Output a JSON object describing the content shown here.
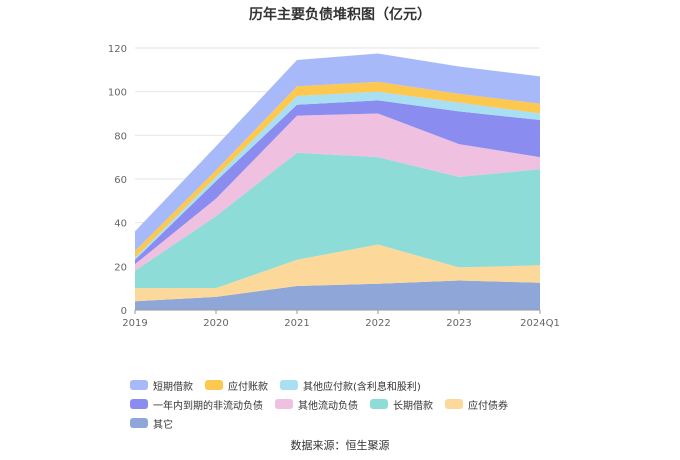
{
  "chart_data": {
    "type": "area",
    "stacked": true,
    "title": "历年主要负债堆积图（亿元）",
    "xlabel": "",
    "ylabel": "",
    "ylim": [
      0,
      120
    ],
    "yticks": [
      0,
      20,
      40,
      60,
      80,
      100,
      120
    ],
    "categories": [
      "2019",
      "2020",
      "2021",
      "2022",
      "2023",
      "2024Q1"
    ],
    "grid": true,
    "legend_position": "bottom",
    "series": [
      {
        "name": "其它",
        "color": "#8ea7d8",
        "values": [
          4,
          6,
          11,
          12,
          13.5,
          12.5
        ]
      },
      {
        "name": "应付债券",
        "color": "#fcd99b",
        "values": [
          6,
          4,
          12,
          18,
          6,
          8
        ]
      },
      {
        "name": "长期借款",
        "color": "#8edcd8",
        "values": [
          8,
          33,
          49,
          40,
          41.5,
          44
        ]
      },
      {
        "name": "其他流动负债",
        "color": "#f0c0e0",
        "values": [
          3,
          8,
          17,
          20,
          15,
          5.5
        ]
      },
      {
        "name": "一年内到期的非流动负债",
        "color": "#8a8cf0",
        "values": [
          2,
          8,
          5,
          6,
          15,
          17
        ]
      },
      {
        "name": "其他应付款(含利息和股利)",
        "color": "#a9dff3",
        "values": [
          1,
          2,
          4,
          4,
          4,
          3
        ]
      },
      {
        "name": "应付账款",
        "color": "#fcc84f",
        "values": [
          3,
          3,
          4.5,
          4.5,
          4,
          4.5
        ]
      },
      {
        "name": "短期借款",
        "color": "#a7b9f8",
        "values": [
          9,
          11,
          12,
          13,
          12.5,
          12.5
        ]
      }
    ],
    "legend_order": [
      "短期借款",
      "应付账款",
      "其他应付款(含利息和股利)",
      "一年内到期的非流动负债",
      "其他流动负债",
      "长期借款",
      "应付债券",
      "其它"
    ]
  },
  "source": "数据来源：恒生聚源"
}
